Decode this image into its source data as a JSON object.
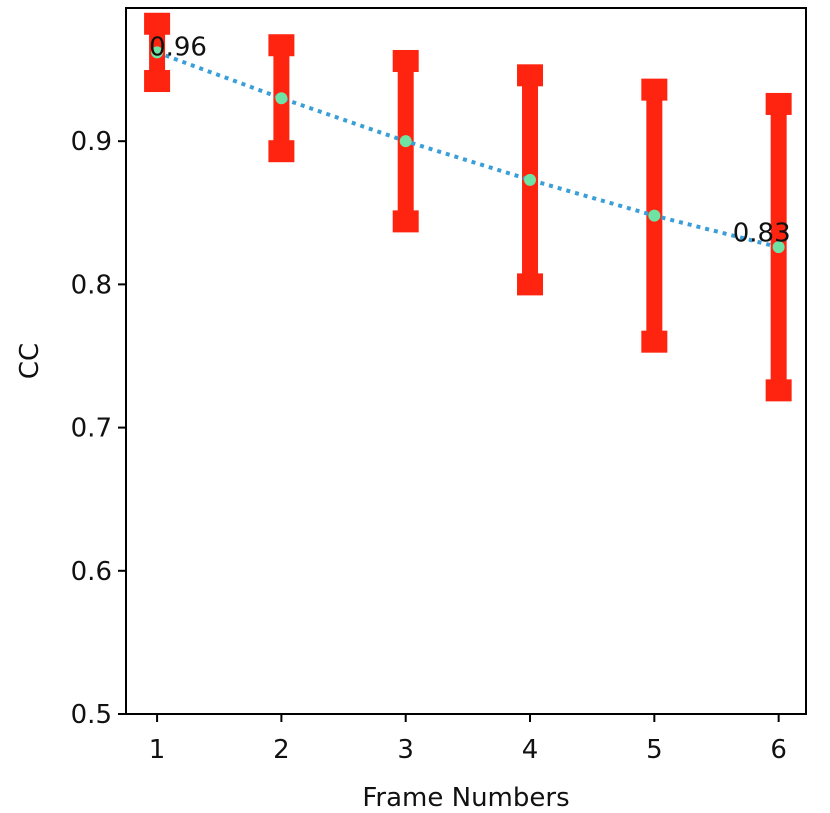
{
  "chart_data": {
    "type": "errorbar_line",
    "x_label": "Frame Numbers",
    "y_label": "CC",
    "x": [
      1,
      2,
      3,
      4,
      5,
      6
    ],
    "values": [
      0.962,
      0.93,
      0.9,
      0.873,
      0.848,
      0.826
    ],
    "errors": [
      0.02,
      0.037,
      0.056,
      0.073,
      0.088,
      0.1
    ],
    "line_color": "#3a9fd8",
    "marker_color": "#6ee3a3",
    "error_color": "#ff2410",
    "xlim": [
      0.75,
      6.22
    ],
    "ylim": [
      0.5,
      0.993
    ],
    "xticks": [
      1,
      2,
      3,
      4,
      5,
      6
    ],
    "yticks": [
      0.5,
      0.6,
      0.7,
      0.8,
      0.9
    ],
    "annotations": [
      {
        "text": "0.96",
        "x": 1,
        "y": 0.96,
        "anchor": "start"
      },
      {
        "text": "0.83",
        "x": 6,
        "y": 0.83,
        "anchor": "end"
      }
    ]
  }
}
